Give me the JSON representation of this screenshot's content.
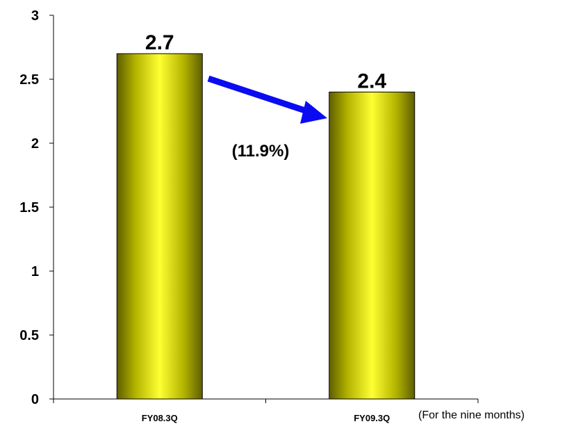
{
  "chart_data": {
    "type": "bar",
    "categories": [
      "FY08.3Q",
      "FY09.3Q"
    ],
    "values": [
      2.7,
      2.4
    ],
    "data_labels": [
      "2.7",
      "2.4"
    ],
    "ylim": [
      0,
      3
    ],
    "yticks": [
      0,
      0.5,
      1,
      1.5,
      2,
      2.5,
      3
    ],
    "ytick_labels": [
      "0",
      "0.5",
      "1",
      "1.5",
      "2",
      "2.5",
      "3"
    ],
    "annotation_change": "(11.9%)",
    "note": "(For the nine months)",
    "grid": false,
    "legend": "none",
    "colors": {
      "bar_light": "#ffff33",
      "bar_dark": "#6b6b00",
      "arrow": "#0b0bf2",
      "axis": "#000000"
    }
  }
}
